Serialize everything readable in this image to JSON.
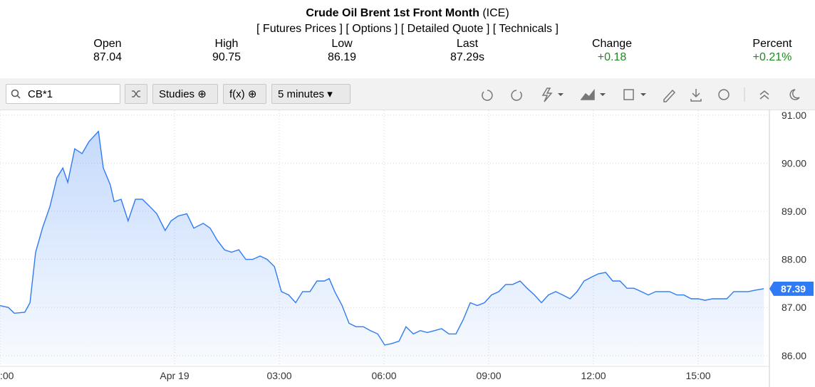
{
  "header": {
    "title": "Crude Oil Brent 1st Front Month",
    "exchange": "(ICE)",
    "links": [
      "[ Futures Prices ]",
      "[ Options ]",
      "[ Detailed Quote ]",
      "[ Technicals ]"
    ]
  },
  "quote": [
    {
      "label": "Open",
      "value": "87.04"
    },
    {
      "label": "High",
      "value": "90.75"
    },
    {
      "label": "Low",
      "value": "86.19"
    },
    {
      "label": "Last",
      "value": "87.29s"
    },
    {
      "label": "Change",
      "value": "+0.18"
    },
    {
      "label": "Percent",
      "value": "+0.21%"
    }
  ],
  "toolbar": {
    "symbol": "CB*1",
    "studies": "Studies",
    "fx": "f(x)",
    "interval": "5 minutes"
  },
  "chart_data": {
    "type": "line",
    "color": "#2f7bf5",
    "grid": true,
    "x": [
      -5.0,
      -4.76,
      -4.59,
      -4.29,
      -4.14,
      -3.98,
      -3.78,
      -3.57,
      -3.37,
      -3.2,
      -3.06,
      -2.86,
      -2.65,
      -2.45,
      -2.18,
      -2.04,
      -1.84,
      -1.73,
      -1.53,
      -1.33,
      -1.12,
      -0.92,
      -0.71,
      -0.51,
      -0.27,
      -0.1,
      0.1,
      0.35,
      0.55,
      0.82,
      1.02,
      1.22,
      1.43,
      1.63,
      1.84,
      2.04,
      2.24,
      2.45,
      2.65,
      2.86,
      3.06,
      3.27,
      3.47,
      3.67,
      3.88,
      4.08,
      4.29,
      4.43,
      4.59,
      4.8,
      5.0,
      5.2,
      5.41,
      5.61,
      5.82,
      6.02,
      6.22,
      6.43,
      6.63,
      6.84,
      7.04,
      7.24,
      7.45,
      7.65,
      7.86,
      8.06,
      8.27,
      8.47,
      8.67,
      8.88,
      9.08,
      9.29,
      9.49,
      9.69,
      9.9,
      10.1,
      10.31,
      10.51,
      10.71,
      10.92,
      11.12,
      11.33,
      11.53,
      11.73,
      11.94,
      12.14,
      12.35,
      12.55,
      12.76,
      12.96,
      13.16,
      13.37,
      13.57,
      13.78,
      13.98,
      14.18,
      14.39,
      14.59,
      14.8,
      15.0,
      15.2,
      15.41,
      15.61,
      15.82,
      16.02,
      16.22,
      16.43,
      16.63,
      16.88
    ],
    "values": [
      87.04,
      87.0,
      86.88,
      86.9,
      87.1,
      88.15,
      88.66,
      89.1,
      89.7,
      89.9,
      89.6,
      90.3,
      90.2,
      90.45,
      90.66,
      89.9,
      89.55,
      89.2,
      89.25,
      88.8,
      89.25,
      89.25,
      89.1,
      88.95,
      88.6,
      88.8,
      88.9,
      88.95,
      88.65,
      88.75,
      88.65,
      88.4,
      88.2,
      88.15,
      88.2,
      88.0,
      88.0,
      88.07,
      88.0,
      87.85,
      87.33,
      87.26,
      87.1,
      87.33,
      87.33,
      87.55,
      87.55,
      87.6,
      87.33,
      87.04,
      86.67,
      86.6,
      86.6,
      86.52,
      86.45,
      86.22,
      86.25,
      86.3,
      86.6,
      86.45,
      86.52,
      86.48,
      86.52,
      86.56,
      86.45,
      86.45,
      86.75,
      87.1,
      87.04,
      87.1,
      87.26,
      87.33,
      87.48,
      87.48,
      87.55,
      87.4,
      87.26,
      87.1,
      87.26,
      87.33,
      87.26,
      87.18,
      87.33,
      87.55,
      87.63,
      87.7,
      87.73,
      87.55,
      87.55,
      87.4,
      87.4,
      87.33,
      87.26,
      87.33,
      87.33,
      87.33,
      87.26,
      87.26,
      87.18,
      87.18,
      87.15,
      87.18,
      87.18,
      87.18,
      87.33,
      87.33,
      87.33,
      87.36,
      87.39
    ],
    "xlim": [
      -5,
      17.04
    ],
    "xticks": [
      {
        "value": -5,
        "label": ":00"
      },
      {
        "value": 0,
        "label": "Apr 19"
      },
      {
        "value": 3,
        "label": "03:00"
      },
      {
        "value": 6,
        "label": "06:00"
      },
      {
        "value": 9,
        "label": "09:00"
      },
      {
        "value": 12,
        "label": "12:00"
      },
      {
        "value": 15,
        "label": "15:00"
      }
    ],
    "ylim": [
      85.82,
      91.1
    ],
    "yticks": [
      {
        "value": 86,
        "label": "86.00"
      },
      {
        "value": 87,
        "label": "87.00"
      },
      {
        "value": 88,
        "label": "88.00"
      },
      {
        "value": 89,
        "label": "89.00"
      },
      {
        "value": 90,
        "label": "90.00"
      },
      {
        "value": 91,
        "label": "91.00"
      }
    ],
    "last_value": 87.39
  }
}
